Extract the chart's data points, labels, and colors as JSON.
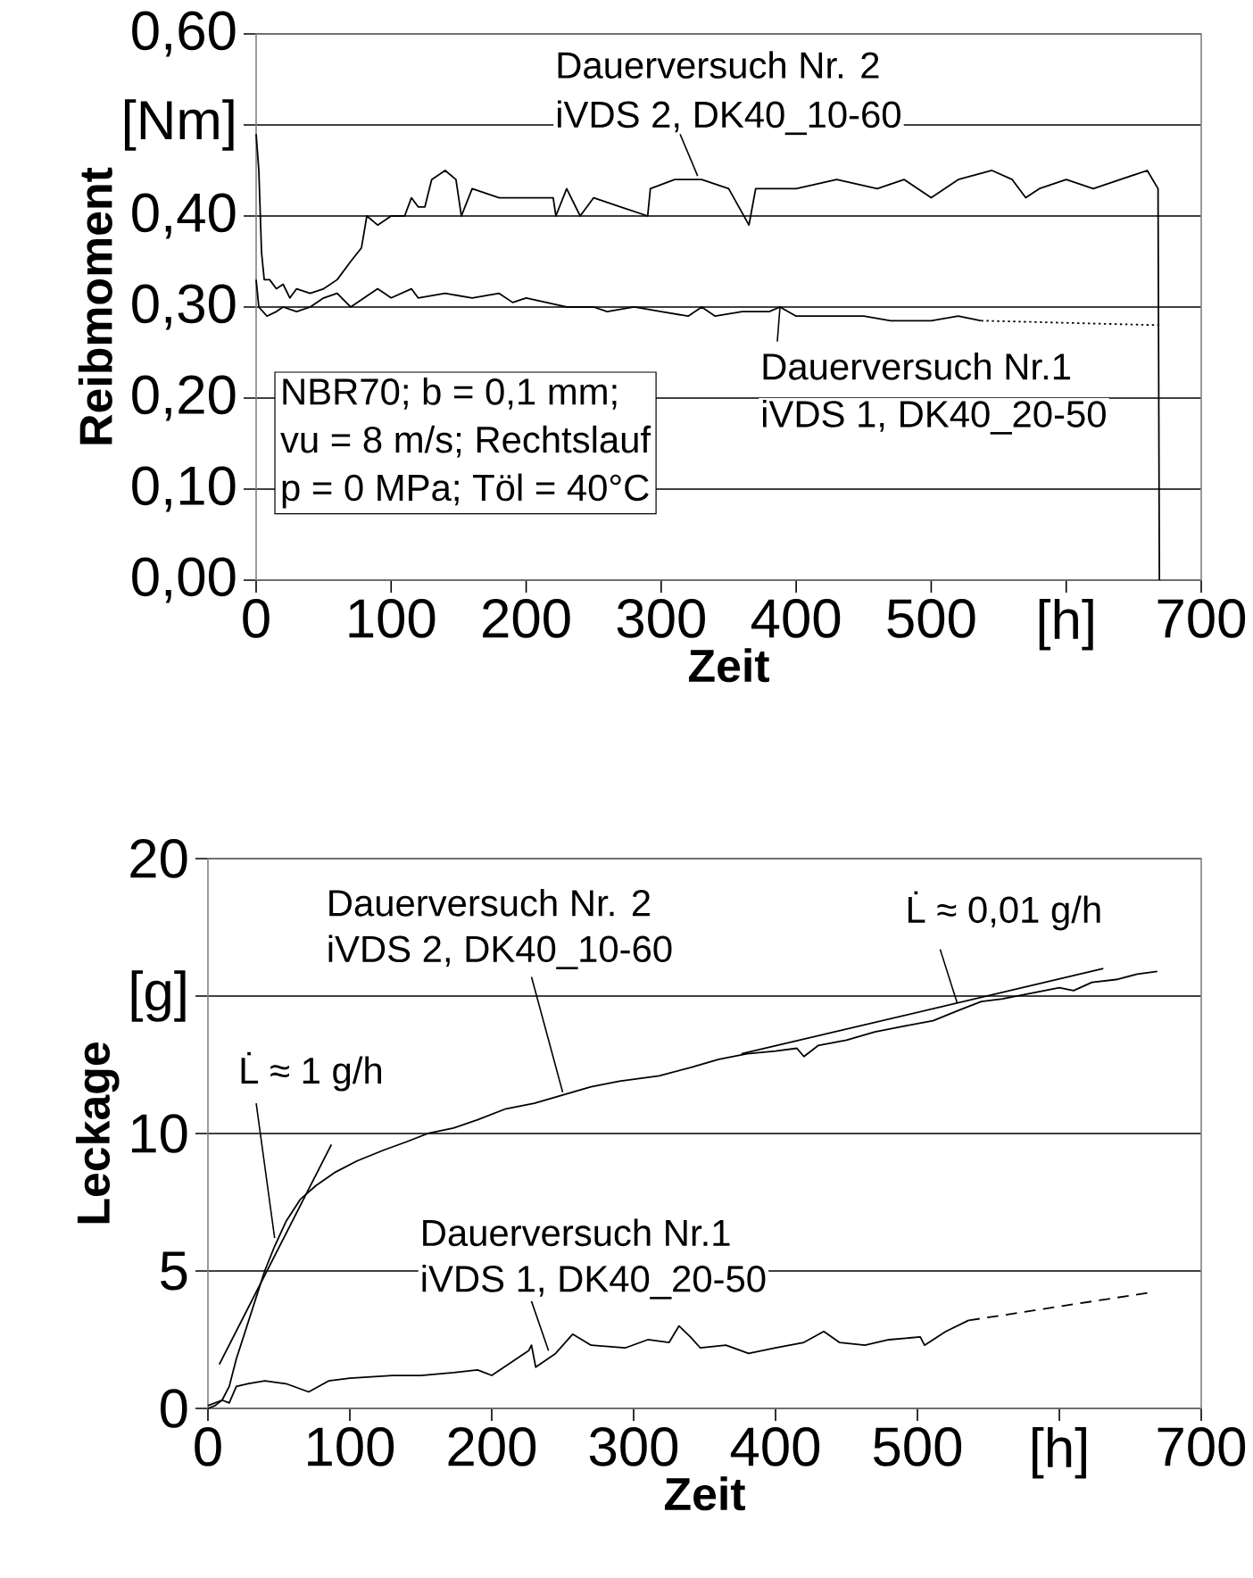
{
  "chart_data": [
    {
      "type": "line",
      "xlabel": "Zeit",
      "ylabel": "Reibmoment",
      "xlim": [
        0,
        700
      ],
      "ylim": [
        0,
        0.6
      ],
      "xticks": [
        0,
        100,
        200,
        300,
        400,
        500,
        {
          "value": 600,
          "label": "[h]"
        },
        700
      ],
      "yticks": [
        {
          "value": 0,
          "label": "0,00"
        },
        {
          "value": 0.1,
          "label": "0,10"
        },
        {
          "value": 0.2,
          "label": "0,20"
        },
        {
          "value": 0.3,
          "label": "0,30"
        },
        {
          "value": 0.4,
          "label": "0,40"
        },
        {
          "value": 0.5,
          "label": "[Nm]"
        },
        {
          "value": 0.6,
          "label": "0,60"
        }
      ],
      "grid": "y",
      "series": [
        {
          "color": "#000000",
          "x": [
            0,
            2,
            4,
            6,
            10,
            15,
            20,
            25,
            30,
            40,
            50,
            60,
            70,
            78,
            82,
            90,
            100,
            110,
            115,
            120,
            125,
            130,
            140,
            148,
            152,
            160,
            180,
            200,
            220,
            222,
            230,
            240,
            250,
            270,
            290,
            292,
            310,
            330,
            350,
            365,
            370,
            400,
            430,
            460,
            480,
            500,
            520,
            545,
            560,
            570,
            580,
            600,
            620,
            640,
            660,
            668,
            669
          ],
          "values": [
            0.49,
            0.45,
            0.36,
            0.33,
            0.33,
            0.32,
            0.325,
            0.31,
            0.32,
            0.315,
            0.32,
            0.33,
            0.35,
            0.365,
            0.4,
            0.39,
            0.4,
            0.4,
            0.42,
            0.41,
            0.41,
            0.44,
            0.45,
            0.44,
            0.4,
            0.43,
            0.42,
            0.42,
            0.42,
            0.4,
            0.43,
            0.4,
            0.42,
            0.41,
            0.4,
            0.43,
            0.44,
            0.44,
            0.43,
            0.39,
            0.43,
            0.43,
            0.44,
            0.43,
            0.44,
            0.42,
            0.44,
            0.45,
            0.44,
            0.42,
            0.43,
            0.44,
            0.43,
            0.44,
            0.45,
            0.43,
            0
          ]
        },
        {
          "color": "#000000",
          "x": [
            0,
            2,
            8,
            15,
            20,
            30,
            40,
            50,
            60,
            70,
            80,
            90,
            100,
            115,
            120,
            140,
            160,
            180,
            190,
            200,
            215,
            230,
            250,
            260,
            280,
            300,
            320,
            330,
            340,
            360,
            380,
            388,
            400,
            430,
            450,
            470,
            500,
            520,
            537
          ],
          "values": [
            0.33,
            0.3,
            0.29,
            0.295,
            0.3,
            0.295,
            0.3,
            0.31,
            0.315,
            0.3,
            0.31,
            0.32,
            0.31,
            0.32,
            0.31,
            0.315,
            0.31,
            0.315,
            0.305,
            0.31,
            0.305,
            0.3,
            0.3,
            0.295,
            0.3,
            0.295,
            0.29,
            0.3,
            0.29,
            0.295,
            0.295,
            0.3,
            0.29,
            0.29,
            0.29,
            0.285,
            0.285,
            0.29,
            0.285
          ]
        },
        {
          "color": "#000000",
          "line_style": "dotted",
          "x": [
            537,
            669
          ],
          "values": [
            0.285,
            0.28
          ]
        }
      ],
      "annotations": [
        "Dauerversuch Nr. 2",
        {
          "text": "iVDS 2, DK40_10-60",
          "x": 327,
          "y": 0.444
        },
        {
          "text": "Dauerversuch Nr.1",
          "x": 388,
          "y": 0.3
        },
        "iVDS 1, DK40_20-50",
        "NBR70; b = 0,1 mm;",
        "vu = 8 m/s; Rechtslauf",
        "p = 0 MPa; Töl = 40°C"
      ]
    },
    {
      "type": "line",
      "xlabel": "Zeit",
      "ylabel": "Leckage",
      "xlim": [
        0,
        700
      ],
      "ylim": [
        0,
        20
      ],
      "xticks": [
        0,
        100,
        200,
        300,
        400,
        500,
        {
          "value": 600,
          "label": "[h]"
        },
        700
      ],
      "yticks": [
        0,
        5,
        10,
        {
          "value": 15,
          "label": "[g]"
        },
        20
      ],
      "grid": "y",
      "series": [
        {
          "color": "#000000",
          "x": [
            0,
            5,
            10,
            15,
            20,
            25,
            30,
            35,
            40,
            47,
            55,
            65,
            76,
            90,
            105,
            124,
            140,
            155,
            173,
            190,
            210,
            230,
            250,
            270,
            290,
            318,
            340,
            360,
            380,
            400,
            415,
            420,
            430,
            450,
            470,
            490,
            511,
            530,
            545,
            560,
            580,
            600,
            610,
            623,
            640,
            655,
            669
          ],
          "values": [
            0,
            0.1,
            0.3,
            0.8,
            1.8,
            2.6,
            3.4,
            4.2,
            5.0,
            5.9,
            6.8,
            7.6,
            8.1,
            8.6,
            9.0,
            9.4,
            9.7,
            10.0,
            10.2,
            10.5,
            10.9,
            11.1,
            11.4,
            11.7,
            11.9,
            12.1,
            12.4,
            12.7,
            12.9,
            13.0,
            13.1,
            12.8,
            13.2,
            13.4,
            13.7,
            13.9,
            14.1,
            14.5,
            14.8,
            14.9,
            15.1,
            15.3,
            15.2,
            15.5,
            15.6,
            15.8,
            15.9
          ]
        },
        {
          "color": "#000000",
          "x": [
            8,
            87
          ],
          "values": [
            1.6,
            9.6
          ]
        },
        {
          "color": "#000000",
          "x": [
            376,
            631
          ],
          "values": [
            12.9,
            16.0
          ]
        },
        {
          "color": "#000000",
          "x": [
            0,
            10,
            15,
            20,
            28,
            40,
            55,
            71,
            85,
            100,
            130,
            150,
            173,
            190,
            200,
            226,
            228,
            231,
            245,
            257,
            270,
            294,
            310,
            325,
            332,
            340,
            347,
            365,
            381,
            400,
            420,
            434,
            445,
            463,
            480,
            502,
            505,
            520,
            536
          ],
          "values": [
            0.1,
            0.3,
            0.2,
            0.8,
            0.9,
            1.0,
            0.9,
            0.6,
            1.0,
            1.1,
            1.2,
            1.2,
            1.3,
            1.4,
            1.2,
            2.1,
            2.3,
            1.5,
            2.0,
            2.7,
            2.3,
            2.2,
            2.5,
            2.4,
            3.0,
            2.6,
            2.2,
            2.3,
            2.0,
            2.2,
            2.4,
            2.8,
            2.4,
            2.3,
            2.5,
            2.6,
            2.3,
            2.8,
            3.2
          ]
        },
        {
          "color": "#000000",
          "line_style": "dashed",
          "x": [
            536,
            662
          ],
          "values": [
            3.2,
            4.2
          ]
        }
      ],
      "annotations": [
        "Dauerversuch Nr. 2",
        {
          "text": "iVDS 2, DK40_10-60",
          "x": 250,
          "y": 11.5
        },
        "Dauerversuch Nr.1",
        {
          "text": "iVDS 1, DK40_20-50",
          "x": 240,
          "y": 2.1
        },
        {
          "text": "L̇ ≈ 1 g/h",
          "x": 47,
          "y": 6.2
        },
        {
          "text": "L̇ ≈ 0,01 g/h",
          "x": 528,
          "y": 14.75
        }
      ]
    }
  ]
}
